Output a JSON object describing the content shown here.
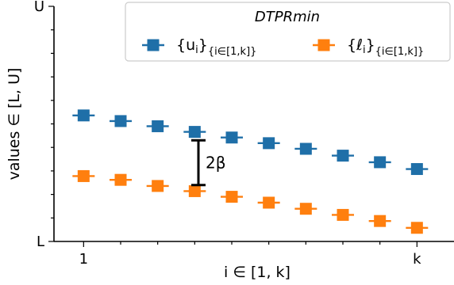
{
  "chart_data": {
    "type": "line",
    "legend_title": "DTPRmin",
    "xlabel": "i ∈ [1, k]",
    "ylabel": "values ∈ [L, U]",
    "x_tick_labels": {
      "1": "1",
      "10": "k"
    },
    "y_tick_labels": [
      "L",
      "U"
    ],
    "x": [
      1,
      2,
      3,
      4,
      5,
      6,
      7,
      8,
      9,
      10
    ],
    "xlim": [
      0.2,
      11.0
    ],
    "ylim": [
      0,
      1
    ],
    "series": [
      {
        "name": "{u_i}_{i∈[1,k]}",
        "color": "#1f6fa8",
        "values": [
          0.536,
          0.512,
          0.49,
          0.466,
          0.442,
          0.418,
          0.394,
          0.365,
          0.337,
          0.308
        ]
      },
      {
        "name": "{ℓ_i}_{i∈[1,k]}",
        "color": "#ff7f0e",
        "values": [
          0.278,
          0.262,
          0.236,
          0.214,
          0.19,
          0.165,
          0.139,
          0.113,
          0.087,
          0.058
        ]
      }
    ],
    "annotation": {
      "label": "2β",
      "x": 4.1,
      "y_from": 0.24,
      "y_to": 0.43
    },
    "legend_position": "top-right",
    "grid": false
  }
}
